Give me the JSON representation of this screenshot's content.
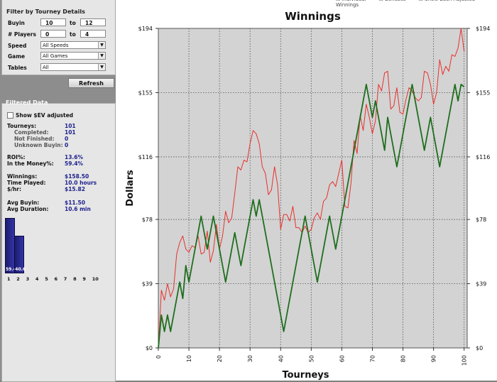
{
  "filter_panel": {
    "title": "Filter by Tourney Details",
    "buyin": {
      "label": "Buyin",
      "from": "10",
      "to_label": "to",
      "to": "12"
    },
    "players": {
      "label": "# Players",
      "from": "0",
      "to_label": "to",
      "to": "4"
    },
    "speed": {
      "label": "Speed",
      "value": "All Speeds"
    },
    "game": {
      "label": "Game",
      "value": "All Games"
    },
    "tables": {
      "label": "Tables",
      "value": "All"
    },
    "refresh_label": "Refresh"
  },
  "data_panel": {
    "title": "Filtered Data",
    "show_sev_label": "Show $EV adjusted",
    "stats": [
      {
        "label": "Tourneys:",
        "value": "101",
        "sub": false
      },
      {
        "label": "Completed:",
        "value": "101",
        "sub": true
      },
      {
        "label": "Not Finished:",
        "value": "0",
        "sub": true
      },
      {
        "label": "Unknown Buyin:",
        "value": "0",
        "sub": true
      },
      {
        "label": "ROI%:",
        "value": "13.6%",
        "sub": false
      },
      {
        "label": "In the Money%:",
        "value": "59.4%",
        "sub": false
      },
      {
        "label": "Winnings:",
        "value": "$158.50",
        "sub": false
      },
      {
        "label": "Time Played:",
        "value": "10.0 hours",
        "sub": false
      },
      {
        "label": "$/hr:",
        "value": "$15.82",
        "sub": false
      },
      {
        "label": "Avg Buyin:",
        "value": "$11.50",
        "sub": false
      },
      {
        "label": "Avg Duration:",
        "value": "10.6 min",
        "sub": false
      }
    ],
    "histogram": {
      "values": [
        59.4,
        40.6
      ],
      "labels": [
        "59.4",
        "40.6"
      ],
      "positions": [
        "1",
        "2",
        "3",
        "4",
        "5",
        "6",
        "7",
        "8",
        "9",
        "10"
      ],
      "max": 65
    }
  },
  "top_controls": [
    "Individual",
    "Bonuses",
    "Show Each Adjusted Winnings"
  ],
  "chart_data": {
    "type": "line",
    "title": "Winnings",
    "xlabel": "Tourneys",
    "ylabel": "Dollars",
    "xlim": [
      0,
      101
    ],
    "ylim": [
      0,
      194
    ],
    "yticks": [
      "$0",
      "$39",
      "$78",
      "$116",
      "$155",
      "$194"
    ],
    "ytick_values": [
      0,
      39,
      78,
      116,
      155,
      194
    ],
    "xticks": [
      0,
      10,
      20,
      30,
      40,
      50,
      60,
      70,
      80,
      90,
      100
    ],
    "grid": true,
    "series": [
      {
        "color": "#e8312c",
        "values": [
          0,
          35,
          29,
          39,
          31,
          36,
          57,
          64,
          68,
          60,
          58,
          62,
          61,
          68,
          57,
          58,
          71,
          52,
          59,
          75,
          60,
          68,
          83,
          76,
          79,
          94,
          110,
          108,
          114,
          113,
          124,
          132,
          130,
          124,
          110,
          106,
          93,
          96,
          110,
          99,
          72,
          81,
          81,
          77,
          86,
          73,
          73,
          70,
          74,
          70,
          72,
          79,
          82,
          78,
          89,
          91,
          99,
          101,
          98,
          106,
          114,
          86,
          85,
          100,
          126,
          118,
          141,
          132,
          148,
          140,
          130,
          138,
          160,
          156,
          167,
          168,
          145,
          147,
          158,
          143,
          142,
          151,
          158,
          156,
          152,
          150,
          152,
          168,
          167,
          160,
          148,
          155,
          175,
          166,
          171,
          168,
          178,
          177,
          182,
          194,
          180
        ]
      },
      {
        "color": "#1e6e1e",
        "values": [
          0,
          20,
          10,
          20,
          10,
          20,
          30,
          40,
          30,
          50,
          40,
          50,
          60,
          70,
          80,
          70,
          60,
          70,
          80,
          70,
          60,
          50,
          40,
          50,
          60,
          70,
          60,
          50,
          60,
          70,
          80,
          90,
          80,
          90,
          80,
          70,
          60,
          50,
          40,
          30,
          20,
          10,
          20,
          30,
          40,
          50,
          60,
          70,
          80,
          70,
          60,
          50,
          40,
          50,
          60,
          70,
          80,
          70,
          60,
          70,
          80,
          90,
          100,
          110,
          120,
          130,
          140,
          150,
          160,
          150,
          140,
          150,
          140,
          130,
          120,
          140,
          130,
          120,
          110,
          120,
          130,
          140,
          150,
          160,
          150,
          140,
          130,
          120,
          130,
          140,
          130,
          120,
          110,
          120,
          130,
          140,
          150,
          160,
          150,
          160,
          158.5
        ]
      }
    ]
  }
}
